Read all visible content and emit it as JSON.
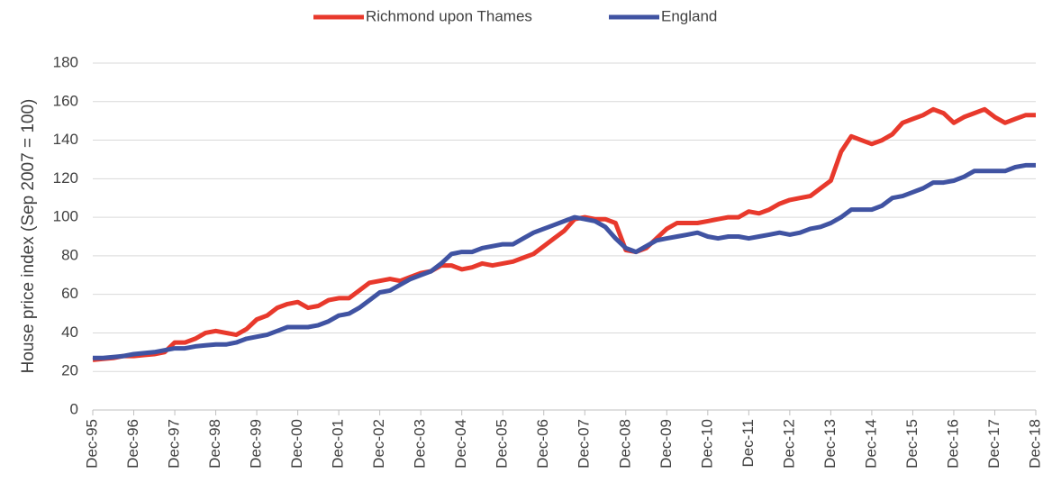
{
  "chart_data": {
    "type": "line",
    "ylabel": "House price index (Sep 2007 = 100)",
    "categories": [
      "Dec-95",
      null,
      null,
      null,
      "Dec-96",
      null,
      null,
      null,
      "Dec-97",
      null,
      null,
      null,
      "Dec-98",
      null,
      null,
      null,
      "Dec-99",
      null,
      null,
      null,
      "Dec-00",
      null,
      null,
      null,
      "Dec-01",
      null,
      null,
      null,
      "Dec-02",
      null,
      null,
      null,
      "Dec-03",
      null,
      null,
      null,
      "Dec-04",
      null,
      null,
      null,
      "Dec-05",
      null,
      null,
      null,
      "Dec-06",
      null,
      null,
      null,
      "Dec-07",
      null,
      null,
      null,
      "Dec-08",
      null,
      null,
      null,
      "Dec-09",
      null,
      null,
      null,
      "Dec-10",
      null,
      null,
      null,
      "Dec-11",
      null,
      null,
      null,
      "Dec-12",
      null,
      null,
      null,
      "Dec-13",
      null,
      null,
      null,
      "Dec-14",
      null,
      null,
      null,
      "Dec-15",
      null,
      null,
      null,
      "Dec-16",
      null,
      null,
      null,
      "Dec-17",
      null,
      null,
      null,
      "Dec-18"
    ],
    "series": [
      {
        "name": "Richmond upon Thames",
        "color": "#e8392c",
        "values": [
          26,
          26.5,
          27,
          28,
          28,
          28.5,
          29,
          30,
          35,
          35,
          37,
          40,
          41,
          40,
          39,
          42,
          47,
          49,
          53,
          55,
          56,
          53,
          54,
          57,
          58,
          58,
          62,
          66,
          67,
          68,
          67,
          69,
          71,
          72,
          75,
          75,
          73,
          74,
          76,
          75,
          76,
          77,
          79,
          81,
          85,
          89,
          93,
          99,
          100,
          99,
          99,
          97,
          83,
          82,
          84,
          89,
          94,
          97,
          97,
          97,
          98,
          99,
          100,
          100,
          103,
          102,
          104,
          107,
          109,
          110,
          111,
          115,
          119,
          134,
          142,
          140,
          138,
          140,
          143,
          149,
          151,
          153,
          156,
          154,
          149,
          152,
          154,
          156,
          152,
          149,
          151,
          153,
          153
        ]
      },
      {
        "name": "England",
        "color": "#4053a2",
        "values": [
          27,
          27,
          27.5,
          28,
          29,
          29.5,
          30,
          31,
          32,
          32,
          33,
          33.5,
          34,
          34,
          35,
          37,
          38,
          39,
          41,
          43,
          43,
          43,
          44,
          46,
          49,
          50,
          53,
          57,
          61,
          62,
          65,
          68,
          70,
          72,
          76,
          81,
          82,
          82,
          84,
          85,
          86,
          86,
          89,
          92,
          94,
          96,
          98,
          100,
          99,
          98,
          95,
          89,
          84,
          82,
          85,
          88,
          89,
          90,
          91,
          92,
          90,
          89,
          90,
          90,
          89,
          90,
          91,
          92,
          91,
          92,
          94,
          95,
          97,
          100,
          104,
          104,
          104,
          106,
          110,
          111,
          113,
          115,
          118,
          118,
          119,
          121,
          124,
          124,
          124,
          124,
          126,
          127,
          127
        ]
      }
    ],
    "ylim": [
      0,
      180
    ],
    "yticks": [
      0,
      20,
      40,
      60,
      80,
      100,
      120,
      140,
      160,
      180
    ],
    "grid": true,
    "legend": "top"
  }
}
